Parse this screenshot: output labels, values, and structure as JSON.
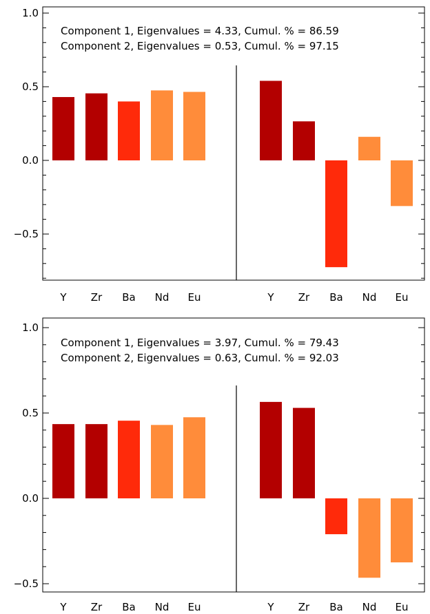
{
  "chart_data": [
    {
      "type": "bar",
      "categories": [
        "Y",
        "Zr",
        "Ba",
        "Nd",
        "Eu"
      ],
      "ylim": [
        -0.8,
        1.05
      ],
      "yticks": [
        {
          "value": -0.5,
          "label": "−0.5"
        },
        {
          "value": 0.0,
          "label": "0.0"
        },
        {
          "value": 0.5,
          "label": "0.5"
        },
        {
          "value": 1.0,
          "label": "1.0"
        }
      ],
      "annotations": [
        "Component 1, Eigenvalues = 4.33, Cumul. % = 86.59",
        "Component 2, Eigenvalues = 0.53, Cumul. % = 97.15"
      ],
      "series": [
        {
          "values": [
            0.43,
            0.455,
            0.4,
            0.475,
            0.465
          ]
        },
        {
          "values": [
            0.54,
            0.265,
            -0.725,
            0.16,
            -0.31
          ]
        }
      ]
    },
    {
      "type": "bar",
      "categories": [
        "Y",
        "Zr",
        "Ba",
        "Nd",
        "Eu"
      ],
      "ylim": [
        -0.57,
        1.08
      ],
      "yticks": [
        {
          "value": -0.5,
          "label": "−0.5"
        },
        {
          "value": 0.0,
          "label": "0.0"
        },
        {
          "value": 0.5,
          "label": "0.5"
        },
        {
          "value": 1.0,
          "label": "1.0"
        }
      ],
      "annotations": [
        "Component 1, Eigenvalues = 3.97, Cumul. % = 79.43",
        "Component 2, Eigenvalues = 0.63, Cumul. % = 92.03"
      ],
      "series": [
        {
          "values": [
            0.435,
            0.435,
            0.455,
            0.43,
            0.475
          ]
        },
        {
          "values": [
            0.565,
            0.53,
            -0.21,
            -0.465,
            -0.375
          ]
        }
      ]
    }
  ],
  "colors": {
    "Y": "#b30000",
    "Zr": "#b30000",
    "Ba": "#ff2a0a",
    "Nd": "#ff8c3a",
    "Eu": "#ff8c3a"
  }
}
